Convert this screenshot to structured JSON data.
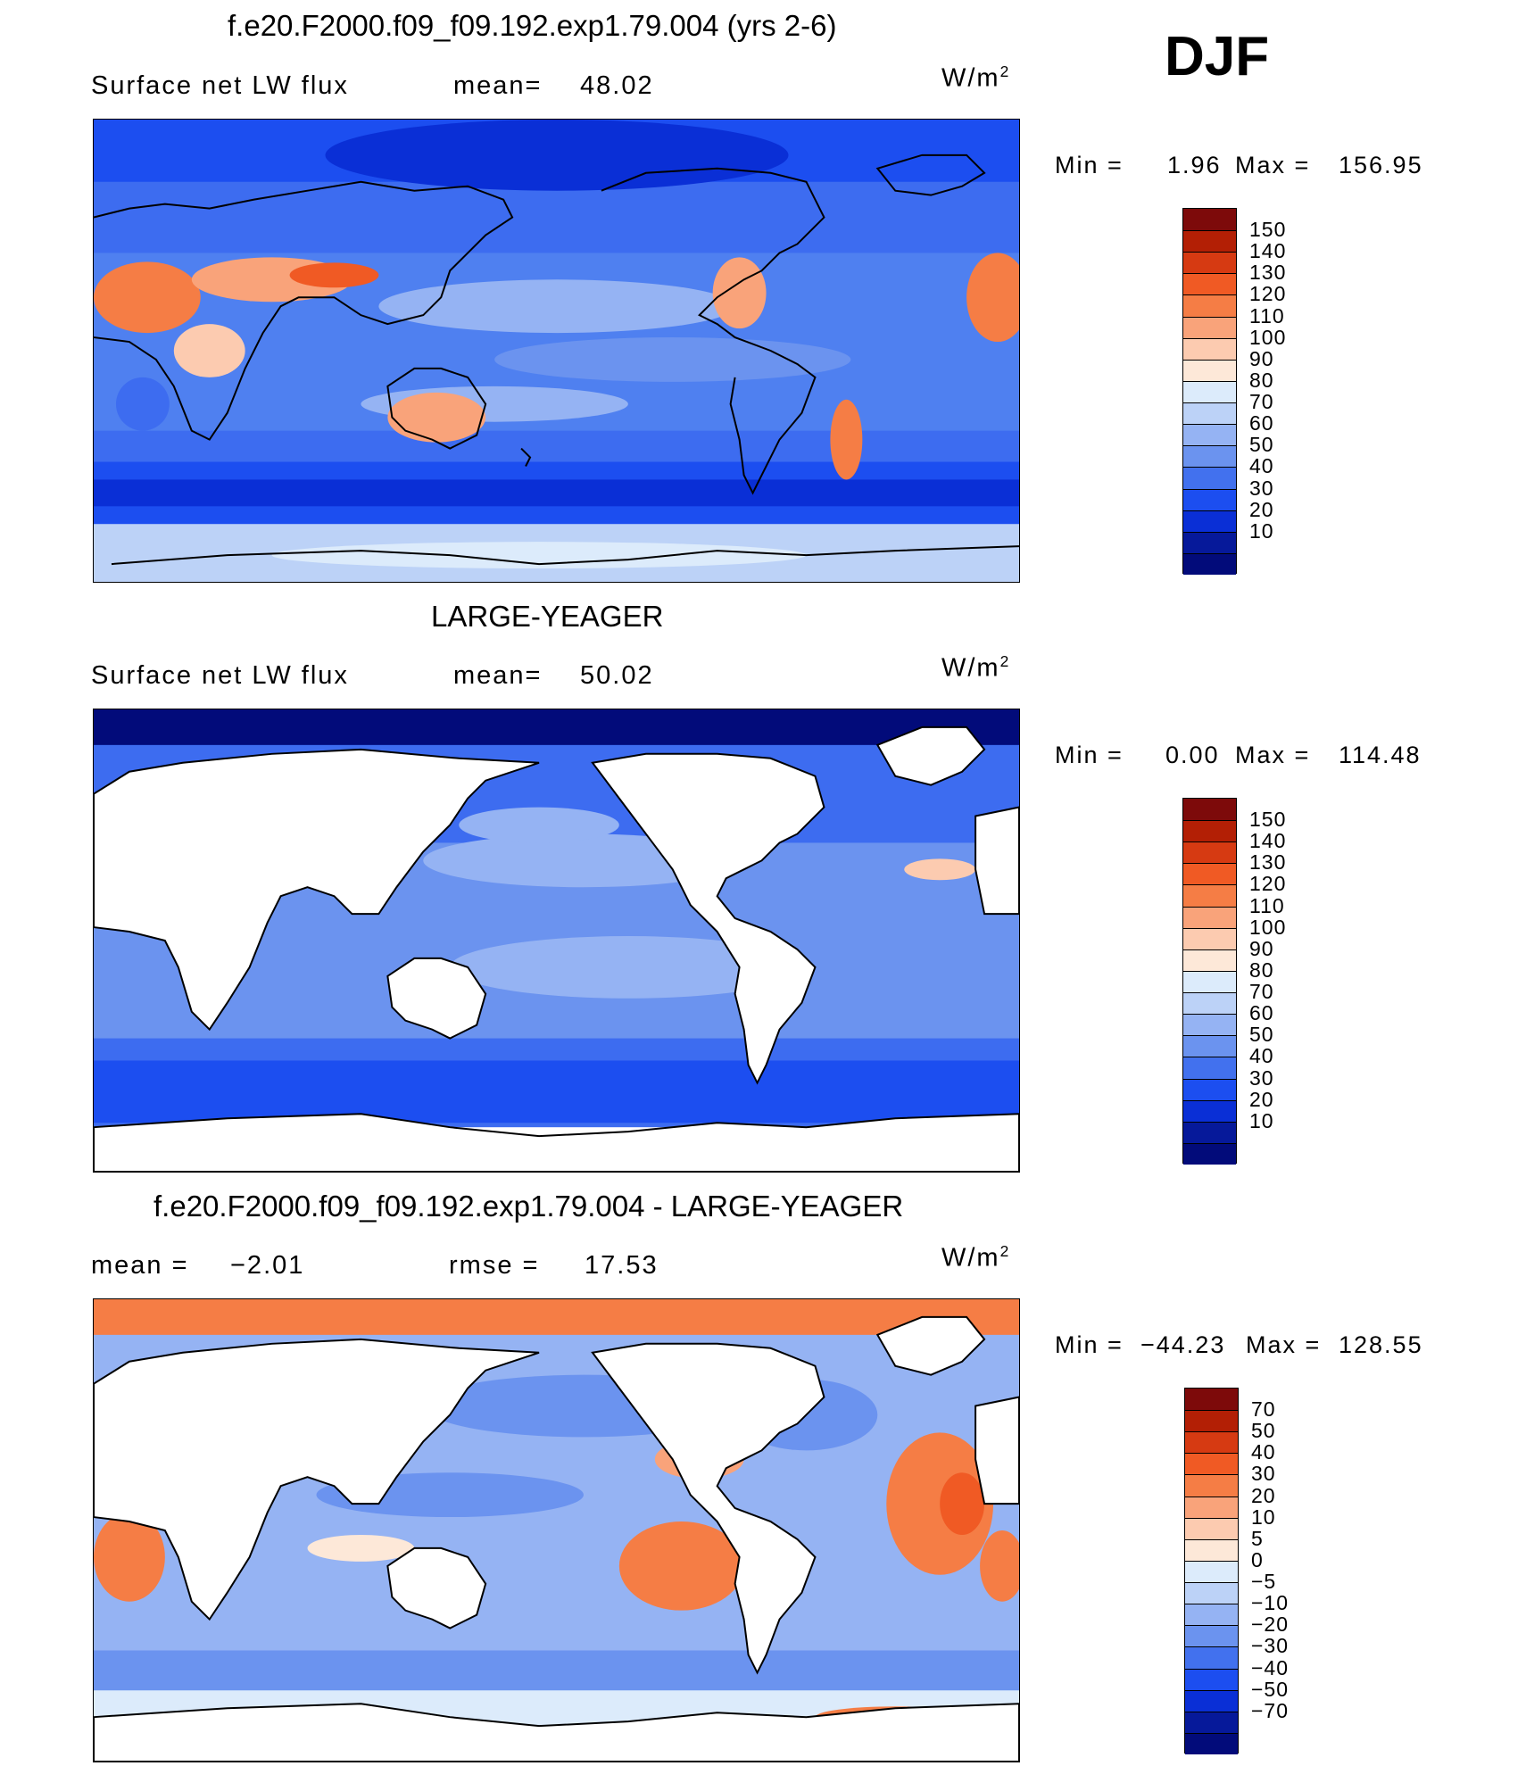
{
  "season": "DJF",
  "units": {
    "w": "W/m",
    "exp": "2"
  },
  "panels": [
    {
      "title": "f.e20.F2000.f09_f09.192.exp1.79.004 (yrs 2-6)",
      "variable": "Surface net LW flux",
      "stat1_label": "mean=",
      "stat1_value": "48.02",
      "min_label": "Min =",
      "min_value": "1.96",
      "max_label": "Max =",
      "max_value": "156.95",
      "colorbar_labels": [
        "150",
        "140",
        "130",
        "120",
        "110",
        "100",
        "90",
        "80",
        "70",
        "60",
        "50",
        "40",
        "30",
        "20",
        "10"
      ]
    },
    {
      "title": "LARGE-YEAGER",
      "variable": "Surface net LW flux",
      "stat1_label": "mean=",
      "stat1_value": "50.02",
      "min_label": "Min =",
      "min_value": "0.00",
      "max_label": "Max =",
      "max_value": "114.48",
      "colorbar_labels": [
        "150",
        "140",
        "130",
        "120",
        "110",
        "100",
        "90",
        "80",
        "70",
        "60",
        "50",
        "40",
        "30",
        "20",
        "10"
      ]
    },
    {
      "title": "f.e20.F2000.f09_f09.192.exp1.79.004 - LARGE-YEAGER",
      "stat1_label": "mean =",
      "stat1_value": "−2.01",
      "stat2_label": "rmse =",
      "stat2_value": "17.53",
      "min_label": "Min =",
      "min_value": "−44.23",
      "max_label": "Max =",
      "max_value": "128.55",
      "colorbar_labels": [
        "70",
        "50",
        "40",
        "30",
        "20",
        "10",
        "5",
        "0",
        "−5",
        "−10",
        "−20",
        "−30",
        "−40",
        "−50",
        "−70"
      ]
    }
  ],
  "colors": {
    "sequential": [
      "#7d0a0a",
      "#b31f05",
      "#d63a12",
      "#f05a24",
      "#f57d45",
      "#f9a37a",
      "#fccbb0",
      "#fde8d8",
      "#dcebfb",
      "#bcd2f7",
      "#95b3f3",
      "#6b93ef",
      "#4271ee",
      "#1c4ef0",
      "#0a2fd6",
      "#06199a",
      "#020b7a"
    ],
    "diverging": [
      "#7d0a0a",
      "#b31f05",
      "#d63a12",
      "#f05a24",
      "#f57d45",
      "#f9a37a",
      "#fccbb0",
      "#fde8d8",
      "#dcebfb",
      "#bcd2f7",
      "#95b3f3",
      "#6b93ef",
      "#4271ee",
      "#1c4ef0",
      "#0a2fd6",
      "#06199a",
      "#020b7a"
    ]
  }
}
